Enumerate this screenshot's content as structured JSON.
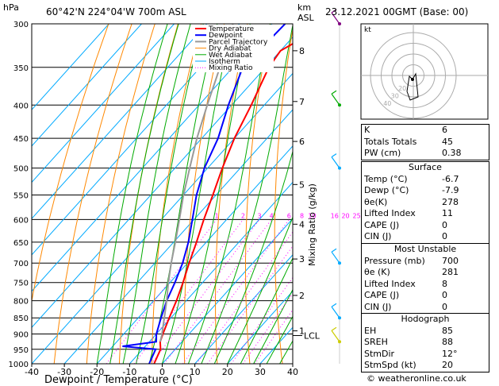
{
  "header": {
    "hpa_label": "hPa",
    "location": "60°42'N  224°04'W  700m  ASL",
    "km_label": "km",
    "asl_label": "ASL",
    "datetime": "23.12.2021  00GMT  (Base: 00)"
  },
  "chart_data": {
    "type": "line",
    "title": "",
    "xlabel": "Dewpoint / Temperature (°C)",
    "ylabel": "hPa",
    "right_axis_label": "Mixing Ratio (g/kg)",
    "xlim": [
      -40,
      40
    ],
    "ylim": [
      1000,
      300
    ],
    "x_ticks": [
      -40,
      -30,
      -20,
      -10,
      0,
      10,
      20,
      30,
      40
    ],
    "pressure_levels": [
      300,
      350,
      400,
      450,
      500,
      550,
      600,
      650,
      700,
      750,
      800,
      850,
      900,
      950,
      1000
    ],
    "km_ticks": [
      {
        "p": 330,
        "label": "8"
      },
      {
        "p": 395,
        "label": "7"
      },
      {
        "p": 455,
        "label": "6"
      },
      {
        "p": 530,
        "label": "5"
      },
      {
        "p": 610,
        "label": "4"
      },
      {
        "p": 690,
        "label": "3"
      },
      {
        "p": 785,
        "label": "2"
      },
      {
        "p": 890,
        "label": "1"
      }
    ],
    "lcl_label": "LCL",
    "lcl_pressure": 905,
    "mixing_ratio_labels": [
      "1",
      "2",
      "3",
      "4",
      "6",
      "8",
      "10",
      "16",
      "20",
      "25"
    ],
    "mixing_ratio_values": [
      1,
      2,
      3,
      4,
      6,
      8,
      10,
      16,
      20,
      25
    ],
    "legend": [
      "Temperature",
      "Dewpoint",
      "Parcel Trajectory",
      "Dry Adiabat",
      "Wet Adiabat",
      "Isotherm",
      "Mixing Ratio"
    ],
    "legend_position": "top-left",
    "series": [
      {
        "name": "Temperature",
        "color": "#ff0000",
        "points": [
          [
            1000,
            -2.5
          ],
          [
            950,
            -4.5
          ],
          [
            925,
            -6.7
          ],
          [
            900,
            -8
          ],
          [
            850,
            -10.5
          ],
          [
            800,
            -13
          ],
          [
            750,
            -16
          ],
          [
            700,
            -19.5
          ],
          [
            650,
            -23
          ],
          [
            600,
            -27
          ],
          [
            550,
            -31
          ],
          [
            500,
            -35.5
          ],
          [
            450,
            -40
          ],
          [
            400,
            -44
          ],
          [
            350,
            -49
          ],
          [
            330,
            -50
          ],
          [
            300,
            -43
          ]
        ]
      },
      {
        "name": "Dewpoint",
        "color": "#0000ff",
        "points": [
          [
            1000,
            -4
          ],
          [
            950,
            -6
          ],
          [
            940,
            -17
          ],
          [
            925,
            -7.9
          ],
          [
            900,
            -10
          ],
          [
            850,
            -13
          ],
          [
            800,
            -16
          ],
          [
            750,
            -18.5
          ],
          [
            700,
            -21.5
          ],
          [
            650,
            -25.5
          ],
          [
            600,
            -30.5
          ],
          [
            550,
            -36
          ],
          [
            500,
            -41
          ],
          [
            450,
            -45
          ],
          [
            400,
            -51
          ],
          [
            350,
            -57
          ],
          [
            300,
            -56
          ]
        ]
      },
      {
        "name": "Parcel Trajectory",
        "color": "#999999",
        "points": [
          [
            925,
            -6.7
          ],
          [
            905,
            -7.9
          ],
          [
            850,
            -12
          ],
          [
            800,
            -16
          ],
          [
            750,
            -20.5
          ],
          [
            700,
            -25
          ],
          [
            650,
            -29.5
          ],
          [
            600,
            -34.5
          ],
          [
            550,
            -40
          ],
          [
            500,
            -45.5
          ],
          [
            450,
            -51.5
          ],
          [
            400,
            -57.5
          ],
          [
            350,
            -64
          ],
          [
            300,
            -72
          ]
        ]
      }
    ],
    "isotherm_color": "#00aaff",
    "dry_adiabat_color": "#ff8800",
    "wet_adiabat_color": "#00aa00",
    "mixing_ratio_color": "#ff00ff"
  },
  "hodograph": {
    "unit_label": "kt",
    "ring_labels": [
      "20",
      "30",
      "40"
    ]
  },
  "indices": {
    "top": [
      {
        "label": "K",
        "value": "6"
      },
      {
        "label": "Totals Totals",
        "value": "45"
      },
      {
        "label": "PW (cm)",
        "value": "0.38"
      }
    ],
    "surface_title": "Surface",
    "surface": [
      {
        "label": "Temp (°C)",
        "value": "-6.7"
      },
      {
        "label": "Dewp (°C)",
        "value": "-7.9"
      },
      {
        "label": "θe(K)",
        "value": "278"
      },
      {
        "label": "Lifted Index",
        "value": "11"
      },
      {
        "label": "CAPE (J)",
        "value": "0"
      },
      {
        "label": "CIN (J)",
        "value": "0"
      }
    ],
    "unstable_title": "Most Unstable",
    "unstable": [
      {
        "label": "Pressure (mb)",
        "value": "700"
      },
      {
        "label": "θe (K)",
        "value": "281"
      },
      {
        "label": "Lifted Index",
        "value": "8"
      },
      {
        "label": "CAPE (J)",
        "value": "0"
      },
      {
        "label": "CIN (J)",
        "value": "0"
      }
    ],
    "hodograph_title": "Hodograph",
    "hodo": [
      {
        "label": "EH",
        "value": "85"
      },
      {
        "label": "SREH",
        "value": "88"
      },
      {
        "label": "StmDir",
        "value": "12°"
      },
      {
        "label": "StmSpd (kt)",
        "value": "20"
      }
    ]
  },
  "footer": {
    "copyright": "© weatheronline.co.uk"
  }
}
